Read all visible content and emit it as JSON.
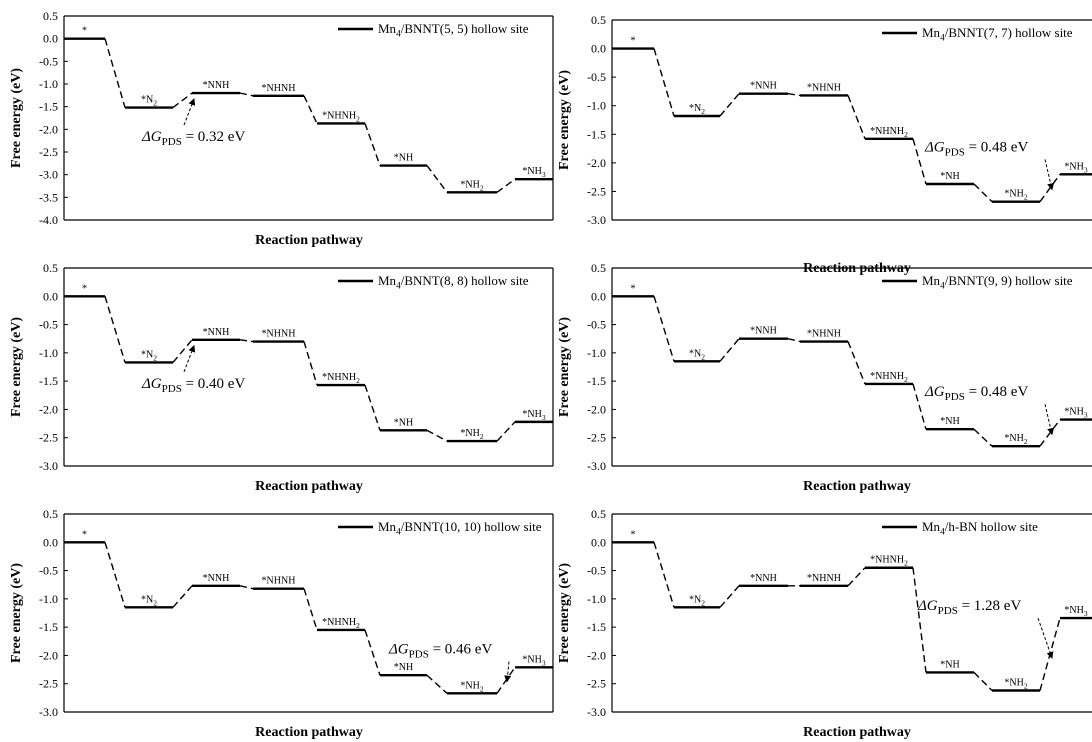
{
  "chart_data": [
    {
      "type": "line",
      "legend": "Mn₄/BNNT(5, 5) hollow site",
      "ylabel": "Free energy (eV)",
      "xlabel": "Reaction pathway",
      "ylim": [
        -4.0,
        0.5
      ],
      "yticks": [
        "0.5",
        "0.0",
        "-0.5",
        "-1.0",
        "-1.5",
        "-2.0",
        "-2.5",
        "-3.0",
        "-3.5",
        "-4.0"
      ],
      "steps": [
        {
          "label": "*",
          "value": 0.0
        },
        {
          "label": "*N₂",
          "value": -1.52
        },
        {
          "label": "*NNH",
          "value": -1.2
        },
        {
          "label": "*NHNH",
          "value": -1.26
        },
        {
          "label": "*NHNH₂",
          "value": -1.87
        },
        {
          "label": "*NH",
          "value": -2.8
        },
        {
          "label": "*NH₂",
          "value": -3.39
        },
        {
          "label": "*NH₃",
          "value": -3.1
        }
      ],
      "annotation": {
        "prefix": "ΔG",
        "sub": "PDS",
        "text": " = 0.32 eV",
        "arrow_to_step": 2
      }
    },
    {
      "type": "line",
      "legend": "Mn₄/BNNT(7, 7) hollow site",
      "ylabel": "Free energy (eV)",
      "xlabel": "Reaction pathway",
      "ylim": [
        -3.0,
        0.5
      ],
      "yticks": [
        "0.5",
        "0.0",
        "-0.5",
        "-1.0",
        "-1.5",
        "-2.0",
        "-2.5",
        "-3.0"
      ],
      "steps": [
        {
          "label": "*",
          "value": 0.0
        },
        {
          "label": "*N₂",
          "value": -1.18
        },
        {
          "label": "*NNH",
          "value": -0.79
        },
        {
          "label": "*NHNH",
          "value": -0.82
        },
        {
          "label": "*NHNH₂",
          "value": -1.58
        },
        {
          "label": "*NH",
          "value": -2.37
        },
        {
          "label": "*NH₂",
          "value": -2.68
        },
        {
          "label": "*NH₃",
          "value": -2.2
        }
      ],
      "annotation": {
        "prefix": "ΔG",
        "sub": "PDS",
        "text": " = 0.48 eV",
        "arrow_to_step": 7
      }
    },
    {
      "type": "line",
      "legend": "Mn₄/BNNT(8, 8) hollow site",
      "ylabel": "Free energy (eV)",
      "xlabel": "Reaction pathway",
      "ylim": [
        -3.0,
        0.5
      ],
      "yticks": [
        "0.5",
        "0.0",
        "-0.5",
        "-1.0",
        "-1.5",
        "-2.0",
        "-2.5",
        "-3.0"
      ],
      "steps": [
        {
          "label": "*",
          "value": 0.0
        },
        {
          "label": "*N₂",
          "value": -1.17
        },
        {
          "label": "*NNH",
          "value": -0.77
        },
        {
          "label": "*NHNH",
          "value": -0.8
        },
        {
          "label": "*NHNH₂",
          "value": -1.57
        },
        {
          "label": "*NH",
          "value": -2.37
        },
        {
          "label": "*NH₂",
          "value": -2.56
        },
        {
          "label": "*NH₃",
          "value": -2.22
        }
      ],
      "annotation": {
        "prefix": "ΔG",
        "sub": "PDS",
        "text": " = 0.40 eV",
        "arrow_to_step": 2
      }
    },
    {
      "type": "line",
      "legend": "Mn₄/BNNT(9, 9) hollow site",
      "ylabel": "Free energy (eV)",
      "xlabel": "Reaction pathway",
      "ylim": [
        -3.0,
        0.5
      ],
      "yticks": [
        "0.5",
        "0.0",
        "-0.5",
        "-1.0",
        "-1.5",
        "-2.0",
        "-2.5",
        "-3.0"
      ],
      "steps": [
        {
          "label": "*",
          "value": 0.0
        },
        {
          "label": "*N₂",
          "value": -1.15
        },
        {
          "label": "*NNH",
          "value": -0.75
        },
        {
          "label": "*NHNH",
          "value": -0.8
        },
        {
          "label": "*NHNH₂",
          "value": -1.55
        },
        {
          "label": "*NH",
          "value": -2.35
        },
        {
          "label": "*NH₂",
          "value": -2.65
        },
        {
          "label": "*NH₃",
          "value": -2.18
        }
      ],
      "annotation": {
        "prefix": "ΔG",
        "sub": "PDS",
        "text": " = 0.48 eV",
        "arrow_to_step": 7
      }
    },
    {
      "type": "line",
      "legend": "Mn₄/BNNT(10, 10) hollow site",
      "ylabel": "Free energy (eV)",
      "xlabel": "Reaction pathway",
      "ylim": [
        -3.0,
        0.5
      ],
      "yticks": [
        "0.5",
        "0.0",
        "-0.5",
        "-1.0",
        "-1.5",
        "-2.0",
        "-2.5",
        "-3.0"
      ],
      "steps": [
        {
          "label": "*",
          "value": 0.0
        },
        {
          "label": "*N₂",
          "value": -1.15
        },
        {
          "label": "*NNH",
          "value": -0.77
        },
        {
          "label": "*NHNH",
          "value": -0.82
        },
        {
          "label": "*NHNH₂",
          "value": -1.55
        },
        {
          "label": "*NH",
          "value": -2.35
        },
        {
          "label": "*NH₂",
          "value": -2.67
        },
        {
          "label": "*NH₃",
          "value": -2.21
        }
      ],
      "annotation": {
        "prefix": "ΔG",
        "sub": "PDS",
        "text": " = 0.46 eV",
        "arrow_to_step": 7
      }
    },
    {
      "type": "line",
      "legend": "Mn₄/h-BN hollow site",
      "ylabel": "Free energy (eV)",
      "xlabel": "Reaction pathway",
      "ylim": [
        -3.0,
        0.5
      ],
      "yticks": [
        "0.5",
        "0.0",
        "-0.5",
        "-1.0",
        "-1.5",
        "-2.0",
        "-2.5",
        "-3.0"
      ],
      "steps": [
        {
          "label": "*",
          "value": 0.0
        },
        {
          "label": "*N₂",
          "value": -1.15
        },
        {
          "label": "*NNH",
          "value": -0.77
        },
        {
          "label": "*NHNH",
          "value": -0.77
        },
        {
          "label": "*NHNH₂",
          "value": -0.45
        },
        {
          "label": "*NH",
          "value": -2.3
        },
        {
          "label": "*NH₂",
          "value": -2.62
        },
        {
          "label": "*NH₃",
          "value": -1.34
        }
      ],
      "annotation": {
        "prefix": "ΔG",
        "sub": "PDS",
        "text": " = 1.28 eV",
        "arrow_to_step": 7
      }
    }
  ]
}
